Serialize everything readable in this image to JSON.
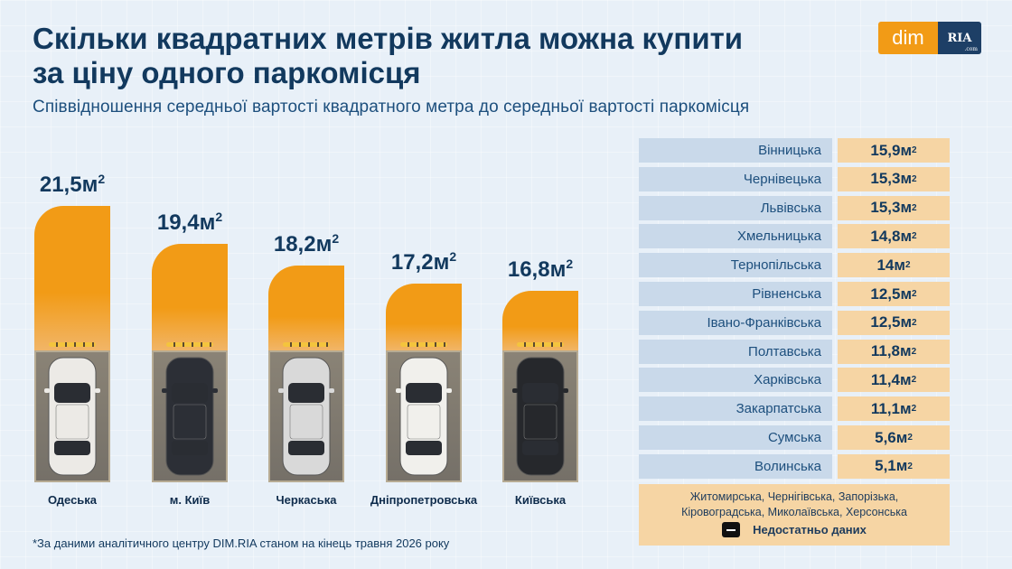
{
  "header": {
    "title_line1": "Скільки квадратних метрів житла можна купити",
    "title_line2": "за ціну одного паркомісця",
    "subtitle": "Співвідношення середньої вартості квадратного метра до середньої вартості паркомісця"
  },
  "logo": {
    "dim": "dim",
    "ria": "RIA",
    "ria_suffix": ".com",
    "colors": {
      "dim_bg": "#f29b16",
      "ria_bg": "#1d3f66"
    }
  },
  "chart_data": {
    "type": "bar",
    "unit": "м²",
    "categories": [
      "Одеська",
      "м. Київ",
      "Черкаська",
      "Дніпропетровська",
      "Київська"
    ],
    "values": [
      21.5,
      19.4,
      18.2,
      17.2,
      16.8
    ],
    "value_labels": [
      "21,5м²",
      "19,4м²",
      "18,2м²",
      "17,2м²",
      "16,8м²"
    ],
    "car_colors": [
      "#eceae6",
      "#2c2f36",
      "#d9d9d9",
      "#f1f0ec",
      "#26282c"
    ],
    "bar_color": "#f29b16"
  },
  "regions": {
    "items": [
      {
        "name": "Вінницька",
        "value": 15.9,
        "label": "15,9м²"
      },
      {
        "name": "Чернівецька",
        "value": 15.3,
        "label": "15,3м²"
      },
      {
        "name": "Львівська",
        "value": 15.3,
        "label": "15,3м²"
      },
      {
        "name": "Хмельницька",
        "value": 14.8,
        "label": "14,8м²"
      },
      {
        "name": "Тернопільська",
        "value": 14,
        "label": "14м²"
      },
      {
        "name": "Рівненська",
        "value": 12.5,
        "label": "12,5м²"
      },
      {
        "name": "Івано-Франківська",
        "value": 12.5,
        "label": "12,5м²"
      },
      {
        "name": "Полтавська",
        "value": 11.8,
        "label": "11,8м²"
      },
      {
        "name": "Харківська",
        "value": 11.4,
        "label": "11,4м²"
      },
      {
        "name": "Закарпатська",
        "value": 11.1,
        "label": "11,1м²"
      },
      {
        "name": "Сумська",
        "value": 5.6,
        "label": "5,6м²"
      },
      {
        "name": "Волинська",
        "value": 5.1,
        "label": "5,1м²"
      }
    ]
  },
  "nodata": {
    "line1": "Житомирська, Чернігівська, Запорізька,",
    "line2": "Кіровоградська, Миколаївська, Херсонська",
    "legend": "Недостатньо даних"
  },
  "footnote": "*За даними аналітичного центру DIM.RIA станом на кінець травня 2026 року"
}
